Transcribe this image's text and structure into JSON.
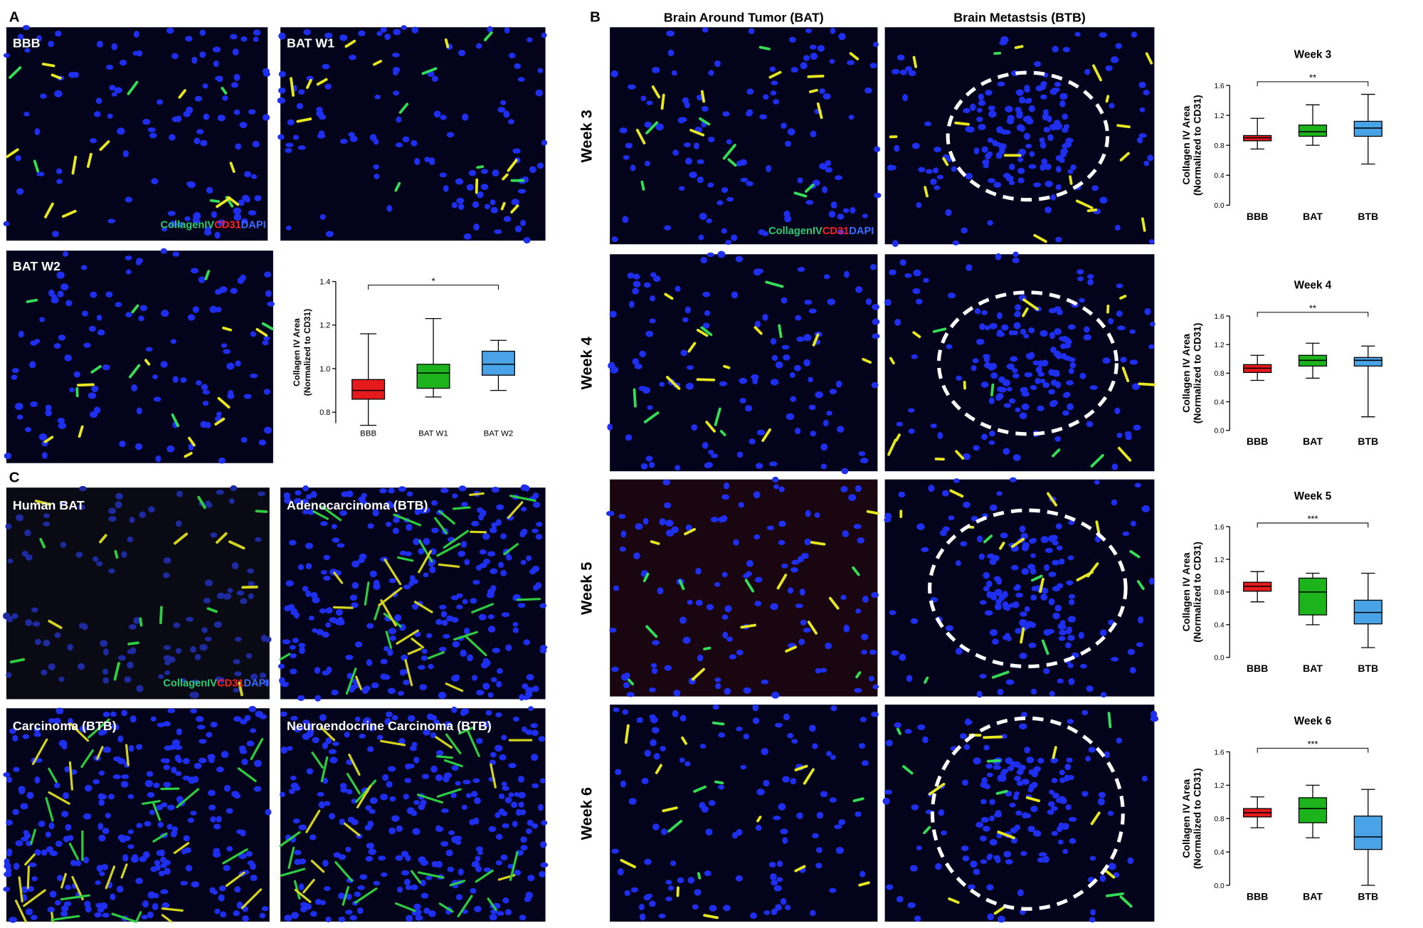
{
  "figure": {
    "panel_a": {
      "label": "A",
      "images": [
        "BBB",
        "BAT W1",
        "BAT W2"
      ]
    },
    "panel_b": {
      "label": "B",
      "columns": [
        "Brain Around Tumor (BAT)",
        "Brain Metastsis (BTB)"
      ],
      "rows": [
        "Week 3",
        "Week 4",
        "Week 5",
        "Week 6"
      ]
    },
    "panel_c": {
      "label": "C",
      "images": [
        "Human BAT",
        "Adenocarcinoma (BTB)",
        "Carcinoma (BTB)",
        "Neuroendocrine Carcinoma (BTB)"
      ]
    },
    "stain_legend": [
      "CollagenIV",
      "CD31",
      "DAPI"
    ]
  },
  "chart_data": [
    {
      "type": "box",
      "ylabel": [
        "Collagen IV Area",
        "(Normalized to CD31)"
      ],
      "categories": [
        "BBB",
        "BAT W1",
        "BAT W2"
      ],
      "colors": [
        "#e41a1c",
        "#1db31d",
        "#4aa3e6"
      ],
      "boxes": [
        {
          "min": 0.74,
          "q1": 0.86,
          "median": 0.9,
          "q3": 0.95,
          "max": 1.16
        },
        {
          "min": 0.87,
          "q1": 0.91,
          "median": 0.98,
          "q3": 1.02,
          "max": 1.23
        },
        {
          "min": 0.9,
          "q1": 0.97,
          "median": 1.02,
          "q3": 1.08,
          "max": 1.13
        }
      ],
      "ylim": [
        0.75,
        1.4
      ],
      "yticks": [
        0.8,
        {
          "value": 1,
          "label": "1.0"
        },
        1.2,
        1.4
      ],
      "significance": "*"
    },
    {
      "type": "box",
      "title": "Week 3",
      "ylabel": [
        "Collagen IV Area",
        "(Normalized to CD31)"
      ],
      "categories": [
        "BBB",
        "BAT",
        "BTB"
      ],
      "colors": [
        "#e41a1c",
        "#1db31d",
        "#4aa3e6"
      ],
      "boxes": [
        {
          "min": 0.75,
          "q1": 0.86,
          "median": 0.9,
          "q3": 0.93,
          "max": 1.16
        },
        {
          "min": 0.8,
          "q1": 0.92,
          "median": 0.98,
          "q3": 1.07,
          "max": 1.34
        },
        {
          "min": 0.55,
          "q1": 0.92,
          "median": 1.03,
          "q3": 1.12,
          "max": 1.48
        }
      ],
      "ylim": [
        0,
        1.6
      ],
      "yticks": [
        {
          "value": 0,
          "label": "0.0"
        },
        0.4,
        0.8,
        1.2,
        1.6
      ],
      "significance": "**"
    },
    {
      "type": "box",
      "title": "Week 4",
      "ylabel": [
        "Collagen IV Area",
        "(Normalized to CD31)"
      ],
      "categories": [
        "BBB",
        "BAT",
        "BTB"
      ],
      "colors": [
        "#e41a1c",
        "#1db31d",
        "#4aa3e6"
      ],
      "boxes": [
        {
          "min": 0.7,
          "q1": 0.81,
          "median": 0.87,
          "q3": 0.92,
          "max": 1.05
        },
        {
          "min": 0.73,
          "q1": 0.9,
          "median": 0.98,
          "q3": 1.05,
          "max": 1.22
        },
        {
          "min": 0.19,
          "q1": 0.9,
          "median": 0.98,
          "q3": 1.02,
          "max": 1.18
        }
      ],
      "ylim": [
        0,
        1.6
      ],
      "yticks": [
        {
          "value": 0,
          "label": "0.0"
        },
        0.4,
        0.8,
        1.2,
        1.6
      ],
      "significance": "**"
    },
    {
      "type": "box",
      "title": "Week 5",
      "ylabel": [
        "Collagen IV Area",
        "(Normalized to CD31)"
      ],
      "categories": [
        "BBB",
        "BAT",
        "BTB"
      ],
      "colors": [
        "#e41a1c",
        "#1db31d",
        "#4aa3e6"
      ],
      "boxes": [
        {
          "min": 0.68,
          "q1": 0.81,
          "median": 0.87,
          "q3": 0.92,
          "max": 1.05
        },
        {
          "min": 0.4,
          "q1": 0.52,
          "median": 0.8,
          "q3": 0.97,
          "max": 1.03
        },
        {
          "min": 0.12,
          "q1": 0.41,
          "median": 0.55,
          "q3": 0.7,
          "max": 1.03
        }
      ],
      "ylim": [
        0,
        1.6
      ],
      "yticks": [
        {
          "value": 0,
          "label": "0.0"
        },
        0.4,
        0.8,
        1.2,
        1.6
      ],
      "significance": "***"
    },
    {
      "type": "box",
      "title": "Week 6",
      "ylabel": [
        "Collagen IV Area",
        "(Normalized to CD31)"
      ],
      "categories": [
        "BBB",
        "BAT",
        "BTB"
      ],
      "colors": [
        "#e41a1c",
        "#1db31d",
        "#4aa3e6"
      ],
      "boxes": [
        {
          "min": 0.69,
          "q1": 0.82,
          "median": 0.87,
          "q3": 0.92,
          "max": 1.06
        },
        {
          "min": 0.57,
          "q1": 0.75,
          "median": 0.92,
          "q3": 1.05,
          "max": 1.2
        },
        {
          "min": 0,
          "q1": 0.43,
          "median": 0.58,
          "q3": 0.83,
          "max": 1.15
        }
      ],
      "ylim": [
        0,
        1.6
      ],
      "yticks": [
        {
          "value": 0,
          "label": "0.0"
        },
        0.4,
        0.8,
        1.2,
        1.6
      ],
      "significance": "***"
    }
  ]
}
